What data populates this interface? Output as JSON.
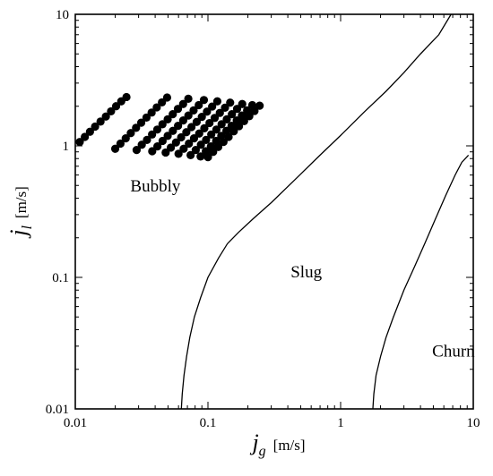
{
  "chart_data": {
    "type": "scatter",
    "title": "",
    "xlabel": {
      "symbol": "j",
      "subscript": "g",
      "unit": "[m/s]"
    },
    "ylabel": {
      "symbol": "j",
      "subscript": "l",
      "unit": "[m/s]"
    },
    "xscale": "log",
    "yscale": "log",
    "xlim": [
      0.01,
      10
    ],
    "ylim": [
      0.01,
      10
    ],
    "grid": false,
    "xticks": [
      {
        "value": 0.01,
        "label": "0.01"
      },
      {
        "value": 0.1,
        "label": "0.1"
      },
      {
        "value": 1,
        "label": "1"
      },
      {
        "value": 10,
        "label": "10"
      }
    ],
    "yticks": [
      {
        "value": 0.01,
        "label": "0.01"
      },
      {
        "value": 0.1,
        "label": "0.1"
      },
      {
        "value": 1,
        "label": "1"
      },
      {
        "value": 10,
        "label": "10"
      }
    ],
    "colors": {
      "points": "#000000",
      "lines": "#000000",
      "background": "#ffffff"
    },
    "series": [
      {
        "kind": "points",
        "points": [
          [
            0.0108,
            1.07
          ],
          [
            0.0118,
            1.17
          ],
          [
            0.0129,
            1.28
          ],
          [
            0.0141,
            1.4
          ],
          [
            0.0155,
            1.53
          ],
          [
            0.017,
            1.67
          ],
          [
            0.0186,
            1.83
          ],
          [
            0.0203,
            2.0
          ],
          [
            0.0222,
            2.18
          ],
          [
            0.0243,
            2.35
          ],
          [
            0.02,
            0.95
          ],
          [
            0.0219,
            1.04
          ],
          [
            0.024,
            1.14
          ],
          [
            0.0262,
            1.25
          ],
          [
            0.0287,
            1.37
          ],
          [
            0.0314,
            1.5
          ],
          [
            0.0344,
            1.64
          ],
          [
            0.0376,
            1.79
          ],
          [
            0.0411,
            1.96
          ],
          [
            0.045,
            2.14
          ],
          [
            0.0492,
            2.33
          ],
          [
            0.029,
            0.93
          ],
          [
            0.0317,
            1.02
          ],
          [
            0.0347,
            1.11
          ],
          [
            0.0379,
            1.22
          ],
          [
            0.0415,
            1.33
          ],
          [
            0.0454,
            1.46
          ],
          [
            0.0497,
            1.59
          ],
          [
            0.0543,
            1.74
          ],
          [
            0.0594,
            1.91
          ],
          [
            0.065,
            2.08
          ],
          [
            0.0711,
            2.28
          ],
          [
            0.038,
            0.91
          ],
          [
            0.0416,
            0.99
          ],
          [
            0.0455,
            1.09
          ],
          [
            0.0497,
            1.19
          ],
          [
            0.0544,
            1.3
          ],
          [
            0.0595,
            1.42
          ],
          [
            0.0651,
            1.56
          ],
          [
            0.0712,
            1.7
          ],
          [
            0.0779,
            1.86
          ],
          [
            0.0852,
            2.04
          ],
          [
            0.0932,
            2.23
          ],
          [
            0.048,
            0.89
          ],
          [
            0.0525,
            0.97
          ],
          [
            0.0574,
            1.06
          ],
          [
            0.0628,
            1.16
          ],
          [
            0.0687,
            1.27
          ],
          [
            0.0751,
            1.39
          ],
          [
            0.0822,
            1.52
          ],
          [
            0.0899,
            1.66
          ],
          [
            0.0983,
            1.82
          ],
          [
            0.1075,
            1.99
          ],
          [
            0.1176,
            2.18
          ],
          [
            0.06,
            0.87
          ],
          [
            0.0656,
            0.95
          ],
          [
            0.0718,
            1.04
          ],
          [
            0.0785,
            1.14
          ],
          [
            0.0859,
            1.24
          ],
          [
            0.0939,
            1.36
          ],
          [
            0.1027,
            1.49
          ],
          [
            0.1124,
            1.63
          ],
          [
            0.1229,
            1.78
          ],
          [
            0.1344,
            1.95
          ],
          [
            0.147,
            2.13
          ],
          [
            0.074,
            0.85
          ],
          [
            0.0809,
            0.93
          ],
          [
            0.0885,
            1.02
          ],
          [
            0.0968,
            1.11
          ],
          [
            0.1059,
            1.22
          ],
          [
            0.1158,
            1.33
          ],
          [
            0.1267,
            1.46
          ],
          [
            0.1386,
            1.59
          ],
          [
            0.1516,
            1.74
          ],
          [
            0.1658,
            1.91
          ],
          [
            0.1813,
            2.08
          ],
          [
            0.088,
            0.83
          ],
          [
            0.0963,
            0.91
          ],
          [
            0.1053,
            0.99
          ],
          [
            0.1152,
            1.09
          ],
          [
            0.126,
            1.19
          ],
          [
            0.1378,
            1.3
          ],
          [
            0.1507,
            1.42
          ],
          [
            0.1649,
            1.56
          ],
          [
            0.1803,
            1.7
          ],
          [
            0.1973,
            1.86
          ],
          [
            0.2158,
            2.04
          ],
          [
            0.1,
            0.82
          ],
          [
            0.1094,
            0.9
          ],
          [
            0.1196,
            0.98
          ],
          [
            0.1309,
            1.07
          ],
          [
            0.1431,
            1.17
          ],
          [
            0.1566,
            1.29
          ],
          [
            0.1713,
            1.41
          ],
          [
            0.1873,
            1.54
          ],
          [
            0.2049,
            1.68
          ],
          [
            0.2241,
            1.84
          ],
          [
            0.2452,
            2.02
          ]
        ]
      },
      {
        "kind": "line",
        "points": [
          [
            0.063,
            0.01
          ],
          [
            0.064,
            0.013
          ],
          [
            0.066,
            0.018
          ],
          [
            0.069,
            0.025
          ],
          [
            0.073,
            0.035
          ],
          [
            0.079,
            0.05
          ],
          [
            0.088,
            0.07
          ],
          [
            0.1,
            0.1
          ],
          [
            0.12,
            0.14
          ],
          [
            0.14,
            0.18
          ],
          [
            0.17,
            0.22
          ],
          [
            0.22,
            0.28
          ],
          [
            0.3,
            0.37
          ],
          [
            0.45,
            0.55
          ],
          [
            0.7,
            0.85
          ],
          [
            1.0,
            1.2
          ],
          [
            1.5,
            1.8
          ],
          [
            2.2,
            2.6
          ],
          [
            3.0,
            3.6
          ],
          [
            4.0,
            5.0
          ],
          [
            5.5,
            7.0
          ],
          [
            6.8,
            10
          ]
        ]
      },
      {
        "kind": "line",
        "points": [
          [
            1.75,
            0.01
          ],
          [
            1.78,
            0.013
          ],
          [
            1.85,
            0.018
          ],
          [
            2.0,
            0.025
          ],
          [
            2.2,
            0.035
          ],
          [
            2.5,
            0.05
          ],
          [
            3.0,
            0.08
          ],
          [
            3.6,
            0.12
          ],
          [
            4.3,
            0.18
          ],
          [
            5.2,
            0.28
          ],
          [
            6.2,
            0.42
          ],
          [
            7.3,
            0.6
          ],
          [
            8.2,
            0.75
          ],
          [
            9.2,
            0.85
          ]
        ]
      }
    ],
    "annotations": [
      {
        "id": "bubbly",
        "text": "Bubbly",
        "x": 0.026,
        "y": 0.45
      },
      {
        "id": "slug",
        "text": "Slug",
        "x": 0.42,
        "y": 0.1
      },
      {
        "id": "churn",
        "text": "Churn",
        "x": 4.9,
        "y": 0.025
      }
    ]
  }
}
